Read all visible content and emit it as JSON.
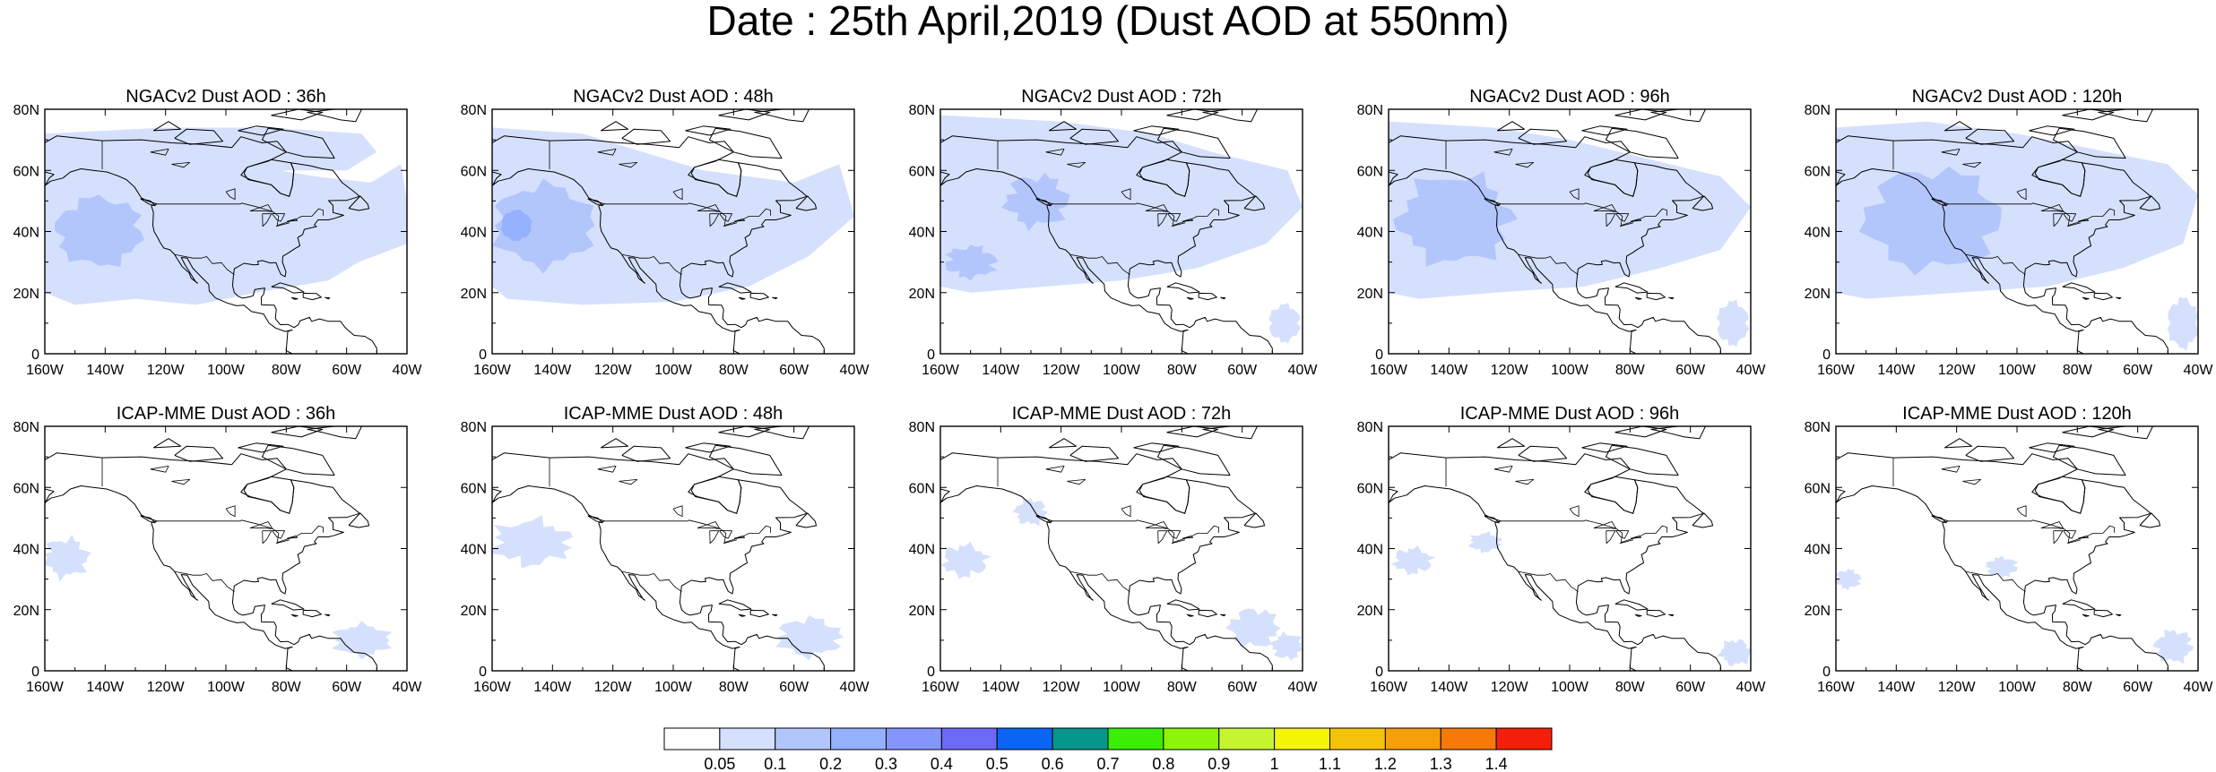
{
  "title": "Date : 25th April,2019 (Dust AOD at 550nm)",
  "axes": {
    "x_ticks": [
      "160W",
      "140W",
      "120W",
      "100W",
      "80W",
      "60W",
      "40W"
    ],
    "y_ticks": [
      "80N",
      "60N",
      "40N",
      "20N",
      "0"
    ],
    "lon_range": [
      -160,
      -40
    ],
    "lat_range": [
      0,
      80
    ]
  },
  "panels": [
    {
      "title": "NGACv2 Dust AOD : 36h",
      "model": "NGACv2",
      "lead": "36h"
    },
    {
      "title": "NGACv2 Dust AOD : 48h",
      "model": "NGACv2",
      "lead": "48h"
    },
    {
      "title": "NGACv2 Dust AOD : 72h",
      "model": "NGACv2",
      "lead": "72h"
    },
    {
      "title": "NGACv2 Dust AOD : 96h",
      "model": "NGACv2",
      "lead": "96h"
    },
    {
      "title": "NGACv2 Dust AOD : 120h",
      "model": "NGACv2",
      "lead": "120h"
    },
    {
      "title": "ICAP-MME Dust AOD : 36h",
      "model": "ICAP-MME",
      "lead": "36h"
    },
    {
      "title": "ICAP-MME Dust AOD : 48h",
      "model": "ICAP-MME",
      "lead": "48h"
    },
    {
      "title": "ICAP-MME Dust AOD : 72h",
      "model": "ICAP-MME",
      "lead": "72h"
    },
    {
      "title": "ICAP-MME Dust AOD : 96h",
      "model": "ICAP-MME",
      "lead": "96h"
    },
    {
      "title": "ICAP-MME Dust AOD : 120h",
      "model": "ICAP-MME",
      "lead": "120h"
    }
  ],
  "colorbar": {
    "labels": [
      "0.05",
      "0.1",
      "0.2",
      "0.3",
      "0.4",
      "0.5",
      "0.6",
      "0.7",
      "0.8",
      "0.9",
      "1",
      "1.1",
      "1.2",
      "1.3",
      "1.4"
    ],
    "colors": [
      "#ffffff",
      "#d5e0fc",
      "#b3c6fc",
      "#95b0fc",
      "#8496fc",
      "#6a6af4",
      "#0a64f4",
      "#06968c",
      "#3ced08",
      "#8cf50a",
      "#c6f530",
      "#f5f50a",
      "#f5c20a",
      "#f5a00a",
      "#f57a0a",
      "#f51e0a"
    ]
  }
}
